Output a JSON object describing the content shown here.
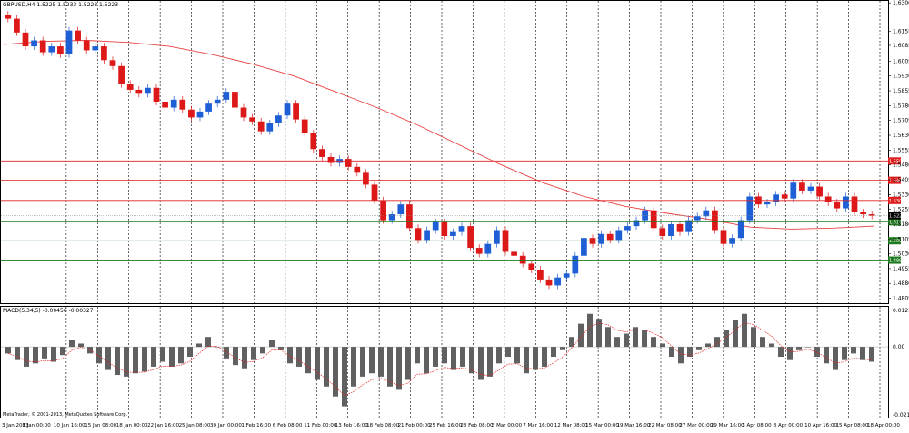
{
  "window": {
    "price_header": "GBPUSD,H4  1.5225 1.5233 1.5223 1.5223",
    "macd_header": "MACD(5,34,5) -0.00456 -0.00327",
    "copyright": "MetaTrader, © 2001-2013, MetaQuotes Software Corp."
  },
  "colors": {
    "bull_candle": "#1f5fd6",
    "bear_candle": "#dd1818",
    "moving_average": "#e84040",
    "resistance_line": "#e02020",
    "support_line": "#1e7a1e",
    "macd_histogram": "#606060",
    "macd_signal": "#e02020",
    "grid": "#000000",
    "current_price_box": "#000000"
  },
  "chart_data": [
    {
      "type": "candlestick",
      "symbol": "GBPUSD",
      "timeframe": "H4",
      "ylim": [
        1.478,
        1.631
      ],
      "y_ticks": [
        "1.6300",
        "1.6155",
        "1.6085",
        "1.6005",
        "1.5930",
        "1.5855",
        "1.5780",
        "1.5705",
        "1.5630",
        "1.5555",
        "1.5480",
        "1.5405",
        "1.5330",
        "1.5255",
        "1.5180",
        "1.5105",
        "1.5030",
        "1.4955",
        "1.4880",
        "1.4805"
      ],
      "x_ticks": [
        "3 Jan 2013",
        "8 Jan 00:00",
        "10 Jan 16:00",
        "15 Jan 08:00",
        "18 Jan 00:00",
        "22 Jan 16:00",
        "25 Jan 08:00",
        "30 Jan 00:00",
        "1 Feb 16:00",
        "6 Feb 08:00",
        "11 Feb 00:00",
        "13 Feb 16:00",
        "18 Feb 08:00",
        "21 Feb 00:00",
        "25 Feb 16:00",
        "28 Feb 08:00",
        "5 Mar 00:00",
        "7 Mar 16:00",
        "12 Mar 08:00",
        "15 Mar 00:00",
        "19 Mar 16:00",
        "22 Mar 08:00",
        "27 Mar 00:00",
        "29 Mar 16:00",
        "3 Apr 08:00",
        "8 Apr 00:00",
        "10 Apr 16:00",
        "15 Apr 08:00",
        "18 Apr 00:00"
      ],
      "levels": [
        {
          "price": 1.55,
          "label": "1.5500",
          "kind": "resistance"
        },
        {
          "price": 1.5402,
          "label": "1.5402",
          "kind": "resistance"
        },
        {
          "price": 1.53,
          "label": "1.5300",
          "kind": "resistance"
        },
        {
          "price": 1.5192,
          "label": "1.5192",
          "kind": "support"
        },
        {
          "price": 1.5096,
          "label": "1.5096",
          "kind": "support"
        },
        {
          "price": 1.4998,
          "label": "1.4998",
          "kind": "support"
        }
      ],
      "current_price": {
        "price": 1.5223,
        "label": "1.5223"
      },
      "moving_average": [
        1.609,
        1.6105,
        1.611,
        1.61,
        1.608,
        1.604,
        1.599,
        1.593,
        1.585,
        1.577,
        1.568,
        1.558,
        1.548,
        1.539,
        1.532,
        1.527,
        1.5235,
        1.5205,
        1.5165,
        1.5155,
        1.516,
        1.517
      ],
      "closes": [
        1.622,
        1.615,
        1.608,
        1.611,
        1.605,
        1.608,
        1.604,
        1.616,
        1.611,
        1.606,
        1.608,
        1.601,
        1.598,
        1.589,
        1.586,
        1.584,
        1.587,
        1.58,
        1.577,
        1.581,
        1.576,
        1.572,
        1.575,
        1.579,
        1.581,
        1.585,
        1.577,
        1.572,
        1.57,
        1.565,
        1.569,
        1.573,
        1.579,
        1.571,
        1.564,
        1.556,
        1.552,
        1.549,
        1.551,
        1.547,
        1.544,
        1.538,
        1.53,
        1.52,
        1.523,
        1.528,
        1.516,
        1.51,
        1.515,
        1.519,
        1.512,
        1.514,
        1.517,
        1.506,
        1.503,
        1.508,
        1.515,
        1.504,
        1.502,
        1.498,
        1.495,
        1.49,
        1.487,
        1.491,
        1.493,
        1.502,
        1.511,
        1.508,
        1.513,
        1.51,
        1.515,
        1.517,
        1.52,
        1.525,
        1.516,
        1.512,
        1.518,
        1.514,
        1.52,
        1.522,
        1.525,
        1.515,
        1.508,
        1.511,
        1.52,
        1.532,
        1.528,
        1.529,
        1.533,
        1.531,
        1.539,
        1.535,
        1.537,
        1.532,
        1.529,
        1.526,
        1.532,
        1.524,
        1.523,
        1.5223
      ]
    },
    {
      "type": "bar",
      "indicator": "MACD(5,34,5)",
      "ylim": [
        -0.0214,
        0.01212
      ],
      "y_ticks": [
        "0.01212",
        "0.00",
        "-0.0214"
      ],
      "histogram": [
        -0.002,
        -0.004,
        -0.006,
        -0.005,
        -0.0035,
        -0.0045,
        -0.0025,
        0.002,
        0.001,
        -0.002,
        -0.005,
        -0.007,
        -0.0085,
        -0.009,
        -0.008,
        -0.0075,
        -0.006,
        -0.0045,
        -0.006,
        -0.005,
        -0.003,
        0.001,
        0.003,
        0.0,
        -0.0035,
        -0.0055,
        -0.0065,
        -0.004,
        -0.002,
        0.002,
        -0.001,
        -0.005,
        -0.006,
        -0.008,
        -0.01,
        -0.012,
        -0.015,
        -0.018,
        -0.012,
        -0.009,
        -0.008,
        -0.009,
        -0.012,
        -0.013,
        -0.01,
        -0.005,
        -0.008,
        -0.006,
        -0.005,
        -0.007,
        -0.006,
        -0.008,
        -0.01,
        -0.009,
        -0.005,
        -0.003,
        -0.005,
        -0.008,
        -0.007,
        -0.006,
        -0.003,
        -0.001,
        0.003,
        0.007,
        0.01,
        0.0085,
        0.006,
        0.003,
        0.004,
        0.006,
        0.005,
        0.003,
        0.001,
        -0.003,
        -0.005,
        -0.003,
        -0.001,
        0.001,
        0.003,
        0.005,
        0.008,
        0.01,
        0.006,
        0.003,
        0.001,
        -0.003,
        -0.004,
        -0.001,
        0.0,
        -0.003,
        -0.005,
        -0.007,
        -0.004,
        -0.002,
        -0.004,
        -0.0045
      ]
    }
  ]
}
